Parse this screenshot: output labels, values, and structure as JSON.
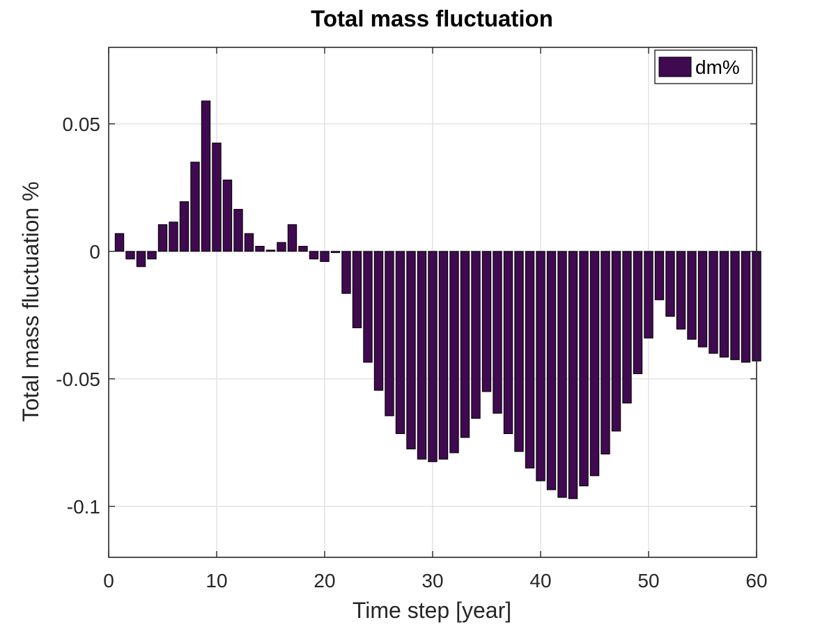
{
  "chart_data": {
    "type": "bar",
    "title": "Total mass fluctuation",
    "xlabel": "Time step [year]",
    "ylabel": "Total mass fluctuation %",
    "xlim": [
      0,
      60
    ],
    "ylim": [
      -0.12,
      0.08
    ],
    "xticks": [
      0,
      10,
      20,
      30,
      40,
      50,
      60
    ],
    "xtick_labels": [
      "0",
      "10",
      "20",
      "30",
      "40",
      "50",
      "60"
    ],
    "yticks": [
      0.05,
      0,
      -0.05,
      -0.1
    ],
    "ytick_labels": [
      "0.05",
      "0",
      "-0.05",
      "-0.1"
    ],
    "grid": true,
    "legend_position": "top-right",
    "bar_color": "#3f0a4f",
    "series": [
      {
        "name": "dm%",
        "x": [
          1,
          2,
          3,
          4,
          5,
          6,
          7,
          8,
          9,
          10,
          11,
          12,
          13,
          14,
          15,
          16,
          17,
          18,
          19,
          20,
          21,
          22,
          23,
          24,
          25,
          26,
          27,
          28,
          29,
          30,
          31,
          32,
          33,
          34,
          35,
          36,
          37,
          38,
          39,
          40,
          41,
          42,
          43,
          44,
          45,
          46,
          47,
          48,
          49,
          50,
          51,
          52,
          53,
          54,
          55,
          56,
          57,
          58,
          59,
          60
        ],
        "values": [
          0.007,
          -0.003,
          -0.006,
          -0.003,
          0.0105,
          0.0115,
          0.0195,
          0.035,
          0.059,
          0.0425,
          0.028,
          0.0165,
          0.007,
          0.002,
          0.0005,
          0.0035,
          0.0105,
          0.002,
          -0.003,
          -0.004,
          -0.0005,
          -0.0165,
          -0.03,
          -0.0435,
          -0.0545,
          -0.0645,
          -0.0715,
          -0.0775,
          -0.0815,
          -0.0825,
          -0.0815,
          -0.079,
          -0.073,
          -0.0655,
          -0.055,
          -0.0635,
          -0.0715,
          -0.0785,
          -0.085,
          -0.09,
          -0.0935,
          -0.0965,
          -0.097,
          -0.092,
          -0.088,
          -0.0795,
          -0.0705,
          -0.0595,
          -0.048,
          -0.034,
          -0.019,
          -0.0255,
          -0.0305,
          -0.0345,
          -0.0375,
          -0.04,
          -0.0415,
          -0.0425,
          -0.0435,
          -0.043
        ]
      }
    ]
  }
}
